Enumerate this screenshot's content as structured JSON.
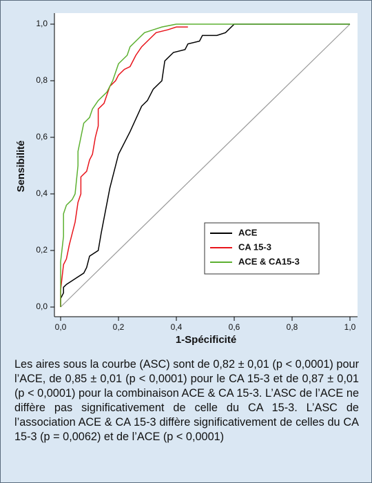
{
  "chart_data": {
    "type": "line",
    "x_label": "1-Spécificité",
    "y_label": "Sensibilité",
    "xlim": [
      0,
      1
    ],
    "ylim": [
      0,
      1
    ],
    "xticks": [
      {
        "value": 0,
        "label": "0,0"
      },
      {
        "value": 0.2,
        "label": "0,2"
      },
      {
        "value": 0.4,
        "label": "0,4"
      },
      {
        "value": 0.6,
        "label": "0,6"
      },
      {
        "value": 0.8,
        "label": "0,8"
      },
      {
        "value": 1,
        "label": "1,0"
      }
    ],
    "yticks": [
      {
        "value": 0,
        "label": "0,0"
      },
      {
        "value": 0.2,
        "label": "0,2"
      },
      {
        "value": 0.4,
        "label": "0,4"
      },
      {
        "value": 0.6,
        "label": "0,6"
      },
      {
        "value": 0.8,
        "label": "0,8"
      },
      {
        "value": 1,
        "label": "1,0"
      }
    ],
    "series": [
      {
        "name": "ACE",
        "color": "#000000",
        "x": [
          0,
          0,
          0.01,
          0.01,
          0.02,
          0.05,
          0.08,
          0.09,
          0.1,
          0.13,
          0.14,
          0.17,
          0.2,
          0.24,
          0.28,
          0.3,
          0.32,
          0.35,
          0.36,
          0.37,
          0.39,
          0.43,
          0.44,
          0.48,
          0.49,
          0.54,
          0.57,
          0.58,
          0.6,
          1
        ],
        "values": [
          0,
          0.03,
          0.05,
          0.07,
          0.08,
          0.1,
          0.12,
          0.14,
          0.18,
          0.2,
          0.26,
          0.42,
          0.54,
          0.62,
          0.71,
          0.73,
          0.77,
          0.8,
          0.87,
          0.88,
          0.9,
          0.91,
          0.93,
          0.94,
          0.96,
          0.96,
          0.97,
          0.98,
          1,
          1
        ]
      },
      {
        "name": "CA 15-3",
        "color": "#e8141b",
        "x": [
          0,
          0,
          0.01,
          0.02,
          0.03,
          0.05,
          0.06,
          0.07,
          0.07,
          0.09,
          0.1,
          0.11,
          0.12,
          0.13,
          0.13,
          0.15,
          0.16,
          0.17,
          0.19,
          0.2,
          0.22,
          0.24,
          0.26,
          0.28,
          0.31,
          0.33,
          0.37,
          0.4,
          0.44
        ],
        "values": [
          0,
          0.06,
          0.15,
          0.17,
          0.22,
          0.3,
          0.37,
          0.4,
          0.46,
          0.48,
          0.52,
          0.54,
          0.6,
          0.64,
          0.7,
          0.72,
          0.75,
          0.78,
          0.8,
          0.82,
          0.84,
          0.85,
          0.89,
          0.92,
          0.95,
          0.97,
          0.98,
          0.99,
          0.99
        ]
      },
      {
        "name": "ACE & CA15-3",
        "color": "#5cb030",
        "x": [
          0,
          0,
          0.01,
          0.01,
          0.02,
          0.03,
          0.04,
          0.05,
          0.06,
          0.06,
          0.07,
          0.08,
          0.1,
          0.11,
          0.13,
          0.16,
          0.18,
          0.2,
          0.23,
          0.24,
          0.27,
          0.29,
          0.32,
          0.35,
          0.4,
          1
        ],
        "values": [
          0,
          0.16,
          0.25,
          0.33,
          0.36,
          0.37,
          0.38,
          0.4,
          0.5,
          0.55,
          0.6,
          0.65,
          0.67,
          0.7,
          0.73,
          0.76,
          0.8,
          0.86,
          0.89,
          0.92,
          0.95,
          0.97,
          0.98,
          0.99,
          1,
          1
        ]
      }
    ]
  },
  "caption": "Les aires sous la courbe (ASC) sont de 0,82 ± 0,01 (p < 0,0001) pour l’ACE, de 0,85 ± 0,01 (p < 0,0001) pour le CA 15-3 et de 0,87 ± 0,01 (p < 0,0001) pour la combinaison ACE & CA 15-3. L’ASC de l’ACE ne diffère pas significativement de celle du CA 15-3. L’ASC de l’association ACE & CA 15-3 diffère significativement de celles du CA 15-3 (p = 0,0062) et de l’ACE (p < 0,0001)"
}
